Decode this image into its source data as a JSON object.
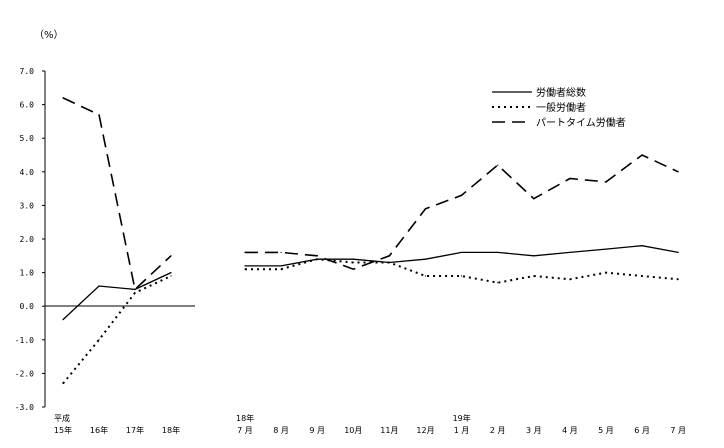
{
  "chart_data": {
    "type": "line",
    "ylabel": "（%）",
    "ylim": [
      -3.0,
      7.0
    ],
    "y_ticks": [
      "7.0",
      "6.0",
      "5.0",
      "4.0",
      "3.0",
      "2.0",
      "1.0",
      "0.0",
      "-1.0",
      "-2.0",
      "-3.0"
    ],
    "annual": {
      "categories": [
        {
          "top": "平成",
          "bottom": "15年"
        },
        {
          "top": "",
          "bottom": "16年"
        },
        {
          "top": "",
          "bottom": "17年"
        },
        {
          "top": "",
          "bottom": "18年"
        }
      ]
    },
    "monthly": {
      "categories": [
        {
          "top": "18年",
          "bottom": "7 月"
        },
        {
          "top": "",
          "bottom": "8 月"
        },
        {
          "top": "",
          "bottom": "9 月"
        },
        {
          "top": "",
          "bottom": "10月"
        },
        {
          "top": "",
          "bottom": "11月"
        },
        {
          "top": "",
          "bottom": "12月"
        },
        {
          "top": "19年",
          "bottom": "1 月"
        },
        {
          "top": "",
          "bottom": "2 月"
        },
        {
          "top": "",
          "bottom": "3 月"
        },
        {
          "top": "",
          "bottom": "4 月"
        },
        {
          "top": "",
          "bottom": "5 月"
        },
        {
          "top": "",
          "bottom": "6 月"
        },
        {
          "top": "",
          "bottom": "7 月"
        }
      ]
    },
    "series": [
      {
        "name": "労働者総数",
        "style": "solid",
        "annual": [
          -0.4,
          0.6,
          0.5,
          1.0
        ],
        "monthly": [
          1.2,
          1.2,
          1.4,
          1.4,
          1.3,
          1.4,
          1.6,
          1.6,
          1.5,
          1.6,
          1.7,
          1.8,
          1.6
        ]
      },
      {
        "name": "一般労働者",
        "style": "dotted",
        "annual": [
          -2.3,
          -1.0,
          0.4,
          0.9
        ],
        "monthly": [
          1.1,
          1.1,
          1.4,
          1.3,
          1.3,
          0.9,
          0.9,
          0.7,
          0.9,
          0.8,
          1.0,
          0.9,
          0.8
        ]
      },
      {
        "name": "パートタイム労働者",
        "style": "dashed",
        "annual": [
          6.2,
          5.7,
          0.5,
          1.5
        ],
        "monthly": [
          1.6,
          1.6,
          1.5,
          1.1,
          1.5,
          2.9,
          3.3,
          4.2,
          3.2,
          3.8,
          3.7,
          4.5,
          4.0
        ]
      }
    ],
    "grid": false,
    "legend_position": "top-right"
  }
}
